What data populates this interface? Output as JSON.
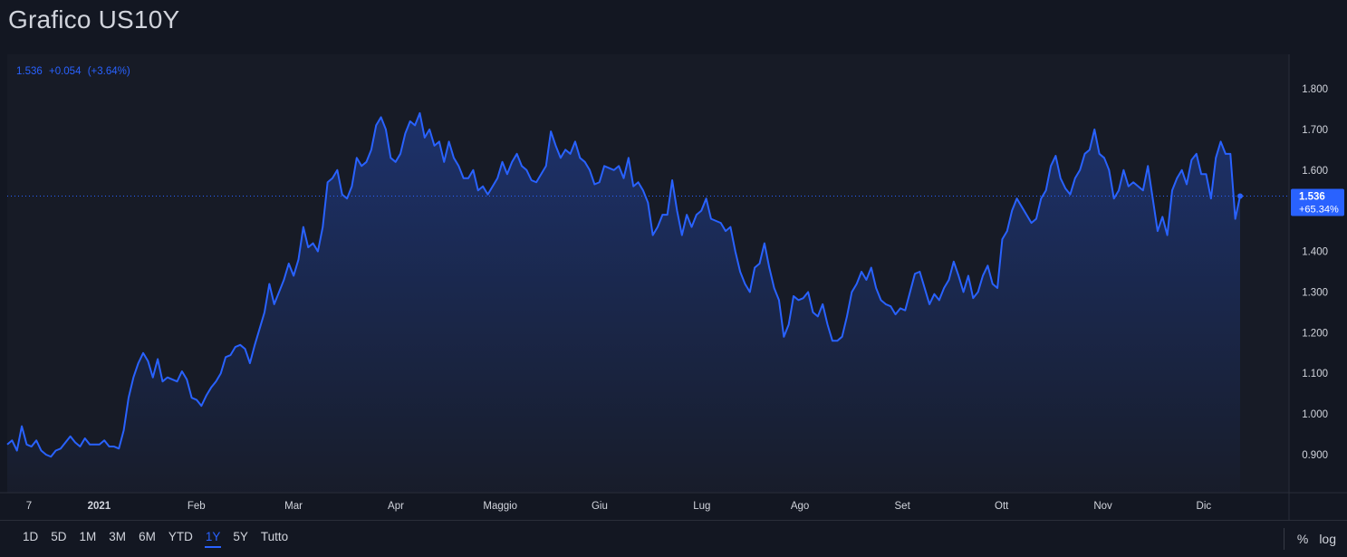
{
  "title": "Grafico US10Y",
  "legend": {
    "value": "1.536",
    "change": "+0.054",
    "change_pct": "(+3.64%)"
  },
  "last_label": {
    "value": "1.536",
    "pct": "+65.34%"
  },
  "colors": {
    "line": "#2962ff",
    "background": "#131722",
    "grid": "#2a2e39",
    "text": "#d1d4dc"
  },
  "ranges": [
    "1D",
    "5D",
    "1M",
    "3M",
    "6M",
    "YTD",
    "1Y",
    "5Y",
    "Tutto"
  ],
  "active_range": "1Y",
  "tools": {
    "percent": "%",
    "log": "log"
  },
  "chart_data": {
    "type": "area",
    "series": [
      {
        "values": [
          0.925,
          0.935,
          0.91,
          0.97,
          0.925,
          0.92,
          0.935,
          0.91,
          0.9,
          0.895,
          0.91,
          0.915,
          0.93,
          0.945,
          0.93,
          0.92,
          0.94,
          0.925,
          0.925,
          0.925,
          0.935,
          0.92,
          0.92,
          0.915,
          0.96,
          1.04,
          1.09,
          1.125,
          1.15,
          1.13,
          1.09,
          1.135,
          1.08,
          1.09,
          1.085,
          1.08,
          1.105,
          1.085,
          1.04,
          1.035,
          1.02,
          1.045,
          1.065,
          1.08,
          1.1,
          1.14,
          1.145,
          1.165,
          1.17,
          1.16,
          1.125,
          1.17,
          1.21,
          1.25,
          1.32,
          1.27,
          1.3,
          1.33,
          1.37,
          1.34,
          1.38,
          1.46,
          1.41,
          1.42,
          1.4,
          1.46,
          1.57,
          1.58,
          1.6,
          1.54,
          1.53,
          1.56,
          1.63,
          1.61,
          1.62,
          1.65,
          1.71,
          1.73,
          1.7,
          1.63,
          1.62,
          1.64,
          1.69,
          1.72,
          1.71,
          1.74,
          1.68,
          1.7,
          1.66,
          1.67,
          1.62,
          1.67,
          1.63,
          1.61,
          1.58,
          1.58,
          1.6,
          1.55,
          1.56,
          1.54,
          1.56,
          1.58,
          1.62,
          1.59,
          1.62,
          1.64,
          1.61,
          1.6,
          1.575,
          1.57,
          1.59,
          1.61,
          1.695,
          1.66,
          1.63,
          1.65,
          1.64,
          1.67,
          1.63,
          1.62,
          1.6,
          1.565,
          1.57,
          1.61,
          1.605,
          1.6,
          1.61,
          1.58,
          1.63,
          1.56,
          1.57,
          1.55,
          1.52,
          1.44,
          1.46,
          1.49,
          1.49,
          1.575,
          1.5,
          1.44,
          1.49,
          1.46,
          1.49,
          1.5,
          1.53,
          1.48,
          1.475,
          1.47,
          1.45,
          1.46,
          1.4,
          1.35,
          1.32,
          1.3,
          1.36,
          1.37,
          1.42,
          1.36,
          1.31,
          1.28,
          1.19,
          1.22,
          1.29,
          1.28,
          1.285,
          1.3,
          1.25,
          1.24,
          1.27,
          1.22,
          1.18,
          1.18,
          1.19,
          1.24,
          1.3,
          1.32,
          1.35,
          1.33,
          1.36,
          1.31,
          1.28,
          1.27,
          1.265,
          1.245,
          1.26,
          1.255,
          1.3,
          1.345,
          1.35,
          1.31,
          1.27,
          1.295,
          1.28,
          1.31,
          1.33,
          1.375,
          1.34,
          1.3,
          1.34,
          1.285,
          1.3,
          1.34,
          1.365,
          1.32,
          1.31,
          1.43,
          1.45,
          1.5,
          1.53,
          1.51,
          1.49,
          1.47,
          1.48,
          1.53,
          1.55,
          1.61,
          1.635,
          1.58,
          1.555,
          1.54,
          1.58,
          1.6,
          1.64,
          1.65,
          1.7,
          1.64,
          1.63,
          1.6,
          1.53,
          1.55,
          1.6,
          1.56,
          1.57,
          1.56,
          1.55,
          1.61,
          1.53,
          1.45,
          1.485,
          1.44,
          1.55,
          1.58,
          1.6,
          1.565,
          1.625,
          1.64,
          1.59,
          1.59,
          1.53,
          1.63,
          1.67,
          1.64,
          1.64,
          1.48,
          1.536
        ]
      }
    ],
    "x_tick_labels": [
      {
        "label": "7",
        "pos": 0.0
      },
      {
        "label": "2021",
        "pos": 0.0575
      },
      {
        "label": "Feb",
        "pos": 0.1373
      },
      {
        "label": "Mar",
        "pos": 0.217
      },
      {
        "label": "Apr",
        "pos": 0.3009
      },
      {
        "label": "Maggio",
        "pos": 0.3865
      },
      {
        "label": "Giu",
        "pos": 0.468
      },
      {
        "label": "Lug",
        "pos": 0.5519
      },
      {
        "label": "Ago",
        "pos": 0.6323
      },
      {
        "label": "Set",
        "pos": 0.7163
      },
      {
        "label": "Ott",
        "pos": 0.7977
      },
      {
        "label": "Nov",
        "pos": 0.8808
      },
      {
        "label": "Dic",
        "pos": 0.9635
      }
    ],
    "y_ticks": [
      0.9,
      1.0,
      1.1,
      1.2,
      1.3,
      1.4,
      1.5,
      1.6,
      1.7,
      1.8
    ],
    "y_tick_labels": [
      "0.900",
      "1.000",
      "1.100",
      "1.200",
      "1.300",
      "1.400",
      "1.500",
      "1.600",
      "1.700",
      "1.800"
    ],
    "ylim": [
      0.8,
      1.9
    ],
    "last_value": 1.536,
    "grid": false
  }
}
